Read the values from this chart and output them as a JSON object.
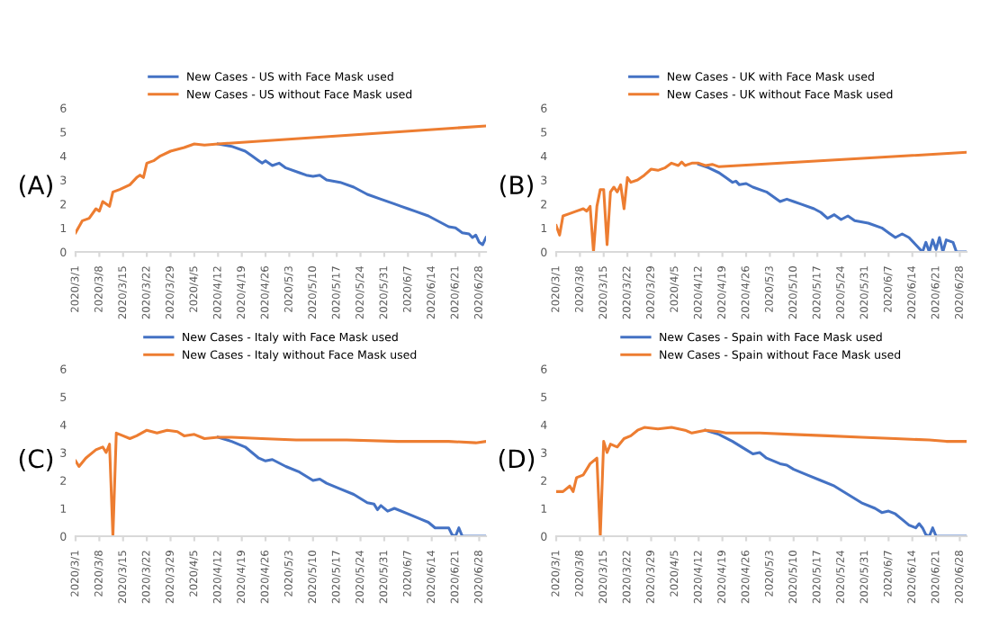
{
  "chart_data": [
    {
      "type": "line",
      "title": "(A)",
      "legend": "top",
      "grid": false,
      "xlim": [
        "2020-03-01",
        "2020-06-30"
      ],
      "ylim": [
        0,
        6
      ],
      "yticks": [
        0,
        1,
        2,
        3,
        4,
        5,
        6
      ],
      "xticks": [
        {
          "value": "2020-03-01",
          "label": "2020/3/1"
        },
        {
          "value": "2020-03-08",
          "label": "2020/3/8"
        },
        {
          "value": "2020-03-15",
          "label": "2020/3/15"
        },
        {
          "value": "2020-03-22",
          "label": "2020/3/22"
        },
        {
          "value": "2020-03-29",
          "label": "2020/3/29"
        },
        {
          "value": "2020-04-05",
          "label": "2020/4/5"
        },
        {
          "value": "2020-04-12",
          "label": "2020/4/12"
        },
        {
          "value": "2020-04-19",
          "label": "2020/4/19"
        },
        {
          "value": "2020-04-26",
          "label": "2020/4/26"
        },
        {
          "value": "2020-05-03",
          "label": "2020/5/3"
        },
        {
          "value": "2020-05-10",
          "label": "2020/5/10"
        },
        {
          "value": "2020-05-17",
          "label": "2020/5/17"
        },
        {
          "value": "2020-05-24",
          "label": "2020/5/24"
        },
        {
          "value": "2020-05-31",
          "label": "2020/5/31"
        },
        {
          "value": "2020-06-07",
          "label": "2020/6/7"
        },
        {
          "value": "2020-06-14",
          "label": "2020/6/14"
        },
        {
          "value": "2020-06-21",
          "label": "2020/6/21"
        },
        {
          "value": "2020-06-28",
          "label": "2020/6/28"
        }
      ],
      "series": [
        {
          "name": "New Cases - US with Face Mask used",
          "color": "#4472c4",
          "x": [
            "2020-04-12",
            "2020-04-16",
            "2020-04-20",
            "2020-04-22",
            "2020-04-24",
            "2020-04-25",
            "2020-04-26",
            "2020-04-28",
            "2020-04-30",
            "2020-05-02",
            "2020-05-06",
            "2020-05-08",
            "2020-05-10",
            "2020-05-12",
            "2020-05-14",
            "2020-05-18",
            "2020-05-22",
            "2020-05-26",
            "2020-05-30",
            "2020-06-03",
            "2020-06-05",
            "2020-06-07",
            "2020-06-09",
            "2020-06-13",
            "2020-06-17",
            "2020-06-19",
            "2020-06-21",
            "2020-06-23",
            "2020-06-25",
            "2020-06-26",
            "2020-06-27",
            "2020-06-28",
            "2020-06-29",
            "2020-06-30"
          ],
          "values": [
            4.5,
            4.4,
            4.2,
            4.0,
            3.8,
            3.7,
            3.8,
            3.6,
            3.7,
            3.5,
            3.3,
            3.2,
            3.15,
            3.2,
            3.0,
            2.9,
            2.7,
            2.4,
            2.2,
            2.0,
            1.9,
            1.8,
            1.7,
            1.5,
            1.2,
            1.05,
            1.0,
            0.8,
            0.75,
            0.6,
            0.7,
            0.4,
            0.3,
            0.6
          ]
        },
        {
          "name": "New Cases - US without Face Mask used",
          "color": "#ed7d31",
          "x": [
            "2020-03-01",
            "2020-03-03",
            "2020-03-05",
            "2020-03-07",
            "2020-03-08",
            "2020-03-09",
            "2020-03-11",
            "2020-03-12",
            "2020-03-14",
            "2020-03-17",
            "2020-03-19",
            "2020-03-20",
            "2020-03-21",
            "2020-03-22",
            "2020-03-24",
            "2020-03-26",
            "2020-03-29",
            "2020-04-02",
            "2020-04-05",
            "2020-04-08",
            "2020-04-12",
            "2020-06-30"
          ],
          "values": [
            0.8,
            1.3,
            1.4,
            1.8,
            1.7,
            2.1,
            1.9,
            2.5,
            2.6,
            2.8,
            3.1,
            3.2,
            3.1,
            3.7,
            3.8,
            4.0,
            4.2,
            4.35,
            4.5,
            4.45,
            4.5,
            5.25
          ]
        }
      ]
    },
    {
      "type": "line",
      "title": "(B)",
      "legend": "top",
      "grid": false,
      "xlim": [
        "2020-03-01",
        "2020-06-30"
      ],
      "ylim": [
        0,
        6
      ],
      "yticks": [
        0,
        1,
        2,
        3,
        4,
        5,
        6
      ],
      "xticks": [
        {
          "value": "2020-03-01",
          "label": "2020/3/1"
        },
        {
          "value": "2020-03-08",
          "label": "2020/3/8"
        },
        {
          "value": "2020-03-15",
          "label": "2020/3/15"
        },
        {
          "value": "2020-03-22",
          "label": "2020/3/22"
        },
        {
          "value": "2020-03-29",
          "label": "2020/3/29"
        },
        {
          "value": "2020-04-05",
          "label": "2020/4/5"
        },
        {
          "value": "2020-04-12",
          "label": "2020/4/12"
        },
        {
          "value": "2020-04-19",
          "label": "2020/4/19"
        },
        {
          "value": "2020-04-26",
          "label": "2020/4/26"
        },
        {
          "value": "2020-05-03",
          "label": "2020/5/3"
        },
        {
          "value": "2020-05-10",
          "label": "2020/5/10"
        },
        {
          "value": "2020-05-17",
          "label": "2020/5/17"
        },
        {
          "value": "2020-05-24",
          "label": "2020/5/24"
        },
        {
          "value": "2020-05-31",
          "label": "2020/5/31"
        },
        {
          "value": "2020-06-07",
          "label": "2020/6/7"
        },
        {
          "value": "2020-06-14",
          "label": "2020/6/14"
        },
        {
          "value": "2020-06-21",
          "label": "2020/6/21"
        },
        {
          "value": "2020-06-28",
          "label": "2020/6/28"
        }
      ],
      "series": [
        {
          "name": "New Cases - UK with Face Mask used",
          "color": "#4472c4",
          "x": [
            "2020-04-12",
            "2020-04-15",
            "2020-04-18",
            "2020-04-20",
            "2020-04-22",
            "2020-04-23",
            "2020-04-24",
            "2020-04-26",
            "2020-04-28",
            "2020-05-02",
            "2020-05-06",
            "2020-05-08",
            "2020-05-10",
            "2020-05-12",
            "2020-05-16",
            "2020-05-18",
            "2020-05-20",
            "2020-05-22",
            "2020-05-24",
            "2020-05-26",
            "2020-05-28",
            "2020-06-01",
            "2020-06-05",
            "2020-06-07",
            "2020-06-09",
            "2020-06-11",
            "2020-06-13",
            "2020-06-15",
            "2020-06-17",
            "2020-06-18",
            "2020-06-19",
            "2020-06-20",
            "2020-06-21",
            "2020-06-22",
            "2020-06-23",
            "2020-06-24",
            "2020-06-26",
            "2020-06-27",
            "2020-06-30"
          ],
          "values": [
            3.65,
            3.5,
            3.3,
            3.1,
            2.9,
            2.95,
            2.8,
            2.85,
            2.7,
            2.5,
            2.1,
            2.2,
            2.1,
            2.0,
            1.8,
            1.65,
            1.4,
            1.55,
            1.35,
            1.5,
            1.3,
            1.2,
            1.0,
            0.8,
            0.6,
            0.75,
            0.6,
            0.3,
            0.0,
            0.4,
            0.0,
            0.5,
            0.1,
            0.6,
            0.0,
            0.5,
            0.4,
            0.0,
            0.0
          ]
        },
        {
          "name": "New Cases - UK without Face Mask used",
          "color": "#ed7d31",
          "x": [
            "2020-03-01",
            "2020-03-02",
            "2020-03-03",
            "2020-03-05",
            "2020-03-07",
            "2020-03-09",
            "2020-03-10",
            "2020-03-11",
            "2020-03-12",
            "2020-03-13",
            "2020-03-14",
            "2020-03-15",
            "2020-03-16",
            "2020-03-17",
            "2020-03-18",
            "2020-03-19",
            "2020-03-20",
            "2020-03-21",
            "2020-03-22",
            "2020-03-23",
            "2020-03-25",
            "2020-03-27",
            "2020-03-29",
            "2020-03-31",
            "2020-04-02",
            "2020-04-04",
            "2020-04-06",
            "2020-04-07",
            "2020-04-08",
            "2020-04-10",
            "2020-04-12",
            "2020-04-14",
            "2020-04-16",
            "2020-04-18",
            "2020-06-30"
          ],
          "values": [
            1.1,
            0.7,
            1.5,
            1.6,
            1.7,
            1.8,
            1.7,
            1.9,
            0.0,
            1.9,
            2.6,
            2.6,
            0.3,
            2.5,
            2.7,
            2.5,
            2.8,
            1.8,
            3.1,
            2.9,
            3.0,
            3.2,
            3.45,
            3.4,
            3.5,
            3.7,
            3.6,
            3.75,
            3.6,
            3.7,
            3.7,
            3.6,
            3.65,
            3.55,
            4.15
          ]
        }
      ]
    },
    {
      "type": "line",
      "title": "(C)",
      "legend": "top",
      "grid": false,
      "xlim": [
        "2020-03-01",
        "2020-06-30"
      ],
      "ylim": [
        0,
        6
      ],
      "yticks": [
        0,
        1,
        2,
        3,
        4,
        5,
        6
      ],
      "xticks": [
        {
          "value": "2020-03-01",
          "label": "2020/3/1"
        },
        {
          "value": "2020-03-08",
          "label": "2020/3/8"
        },
        {
          "value": "2020-03-15",
          "label": "2020/3/15"
        },
        {
          "value": "2020-03-22",
          "label": "2020/3/22"
        },
        {
          "value": "2020-03-29",
          "label": "2020/3/29"
        },
        {
          "value": "2020-04-05",
          "label": "2020/4/5"
        },
        {
          "value": "2020-04-12",
          "label": "2020/4/12"
        },
        {
          "value": "2020-04-19",
          "label": "2020/4/19"
        },
        {
          "value": "2020-04-26",
          "label": "2020/4/26"
        },
        {
          "value": "2020-05-03",
          "label": "2020/5/3"
        },
        {
          "value": "2020-05-10",
          "label": "2020/5/10"
        },
        {
          "value": "2020-05-17",
          "label": "2020/5/17"
        },
        {
          "value": "2020-05-24",
          "label": "2020/5/24"
        },
        {
          "value": "2020-05-31",
          "label": "2020/5/31"
        },
        {
          "value": "2020-06-07",
          "label": "2020/6/7"
        },
        {
          "value": "2020-06-14",
          "label": "2020/6/14"
        },
        {
          "value": "2020-06-21",
          "label": "2020/6/21"
        },
        {
          "value": "2020-06-28",
          "label": "2020/6/28"
        }
      ],
      "series": [
        {
          "name": "New Cases - Italy with Face Mask used",
          "color": "#4472c4",
          "x": [
            "2020-04-12",
            "2020-04-16",
            "2020-04-20",
            "2020-04-24",
            "2020-04-26",
            "2020-04-28",
            "2020-05-02",
            "2020-05-06",
            "2020-05-10",
            "2020-05-12",
            "2020-05-14",
            "2020-05-18",
            "2020-05-22",
            "2020-05-26",
            "2020-05-28",
            "2020-05-29",
            "2020-05-30",
            "2020-06-01",
            "2020-06-03",
            "2020-06-07",
            "2020-06-11",
            "2020-06-13",
            "2020-06-15",
            "2020-06-19",
            "2020-06-20",
            "2020-06-21",
            "2020-06-22",
            "2020-06-23",
            "2020-06-30"
          ],
          "values": [
            3.55,
            3.4,
            3.2,
            2.8,
            2.7,
            2.75,
            2.5,
            2.3,
            2.0,
            2.05,
            1.9,
            1.7,
            1.5,
            1.2,
            1.15,
            0.95,
            1.1,
            0.9,
            1.0,
            0.8,
            0.6,
            0.5,
            0.3,
            0.3,
            0.05,
            0.0,
            0.3,
            0.0,
            0.0
          ]
        },
        {
          "name": "New Cases - Italy without Face Mask used",
          "color": "#ed7d31",
          "x": [
            "2020-03-01",
            "2020-03-02",
            "2020-03-04",
            "2020-03-07",
            "2020-03-09",
            "2020-03-10",
            "2020-03-11",
            "2020-03-12",
            "2020-03-13",
            "2020-03-15",
            "2020-03-17",
            "2020-03-19",
            "2020-03-22",
            "2020-03-25",
            "2020-03-28",
            "2020-03-31",
            "2020-04-02",
            "2020-04-05",
            "2020-04-08",
            "2020-04-12",
            "2020-04-16",
            "2020-04-25",
            "2020-05-05",
            "2020-05-20",
            "2020-06-04",
            "2020-06-19",
            "2020-06-27",
            "2020-06-30"
          ],
          "values": [
            2.7,
            2.5,
            2.8,
            3.1,
            3.2,
            3.0,
            3.3,
            0.0,
            3.7,
            3.6,
            3.5,
            3.6,
            3.8,
            3.7,
            3.8,
            3.75,
            3.6,
            3.65,
            3.5,
            3.55,
            3.55,
            3.5,
            3.45,
            3.45,
            3.4,
            3.4,
            3.35,
            3.4
          ]
        }
      ]
    },
    {
      "type": "line",
      "title": "(D)",
      "legend": "top",
      "grid": false,
      "xlim": [
        "2020-03-01",
        "2020-06-30"
      ],
      "ylim": [
        0,
        6
      ],
      "yticks": [
        0,
        1,
        2,
        3,
        4,
        5,
        6
      ],
      "xticks": [
        {
          "value": "2020-03-01",
          "label": "2020/3/1"
        },
        {
          "value": "2020-03-08",
          "label": "2020/3/8"
        },
        {
          "value": "2020-03-15",
          "label": "2020/3/15"
        },
        {
          "value": "2020-03-22",
          "label": "2020/3/22"
        },
        {
          "value": "2020-03-29",
          "label": "2020/3/29"
        },
        {
          "value": "2020-04-05",
          "label": "2020/4/5"
        },
        {
          "value": "2020-04-12",
          "label": "2020/4/12"
        },
        {
          "value": "2020-04-19",
          "label": "2020/4/19"
        },
        {
          "value": "2020-04-26",
          "label": "2020/4/26"
        },
        {
          "value": "2020-05-03",
          "label": "2020/5/3"
        },
        {
          "value": "2020-05-10",
          "label": "2020/5/10"
        },
        {
          "value": "2020-05-17",
          "label": "2020/5/17"
        },
        {
          "value": "2020-05-24",
          "label": "2020/5/24"
        },
        {
          "value": "2020-05-31",
          "label": "2020/5/31"
        },
        {
          "value": "2020-06-07",
          "label": "2020/6/7"
        },
        {
          "value": "2020-06-14",
          "label": "2020/6/14"
        },
        {
          "value": "2020-06-21",
          "label": "2020/6/21"
        },
        {
          "value": "2020-06-28",
          "label": "2020/6/28"
        }
      ],
      "series": [
        {
          "name": "New Cases - Spain with Face Mask used",
          "color": "#4472c4",
          "x": [
            "2020-04-14",
            "2020-04-18",
            "2020-04-22",
            "2020-04-26",
            "2020-04-28",
            "2020-04-30",
            "2020-05-02",
            "2020-05-06",
            "2020-05-08",
            "2020-05-10",
            "2020-05-14",
            "2020-05-18",
            "2020-05-22",
            "2020-05-26",
            "2020-05-30",
            "2020-06-03",
            "2020-06-05",
            "2020-06-07",
            "2020-06-09",
            "2020-06-11",
            "2020-06-13",
            "2020-06-15",
            "2020-06-16",
            "2020-06-17",
            "2020-06-18",
            "2020-06-19",
            "2020-06-20",
            "2020-06-21",
            "2020-06-30"
          ],
          "values": [
            3.8,
            3.65,
            3.4,
            3.1,
            2.95,
            3.0,
            2.8,
            2.6,
            2.55,
            2.4,
            2.2,
            2.0,
            1.8,
            1.5,
            1.2,
            1.0,
            0.85,
            0.9,
            0.8,
            0.6,
            0.4,
            0.3,
            0.45,
            0.3,
            0.05,
            0.0,
            0.3,
            0.0,
            0.0
          ]
        },
        {
          "name": "New Cases - Spain without Face Mask used",
          "color": "#ed7d31",
          "x": [
            "2020-03-01",
            "2020-03-03",
            "2020-03-05",
            "2020-03-06",
            "2020-03-07",
            "2020-03-09",
            "2020-03-11",
            "2020-03-13",
            "2020-03-14",
            "2020-03-15",
            "2020-03-16",
            "2020-03-17",
            "2020-03-19",
            "2020-03-21",
            "2020-03-23",
            "2020-03-25",
            "2020-03-27",
            "2020-03-31",
            "2020-04-04",
            "2020-04-08",
            "2020-04-10",
            "2020-04-14",
            "2020-04-18",
            "2020-04-20",
            "2020-04-30",
            "2020-05-10",
            "2020-05-20",
            "2020-05-30",
            "2020-06-09",
            "2020-06-19",
            "2020-06-24",
            "2020-06-30"
          ],
          "values": [
            1.6,
            1.6,
            1.8,
            1.6,
            2.1,
            2.2,
            2.6,
            2.8,
            0.0,
            3.4,
            3.0,
            3.3,
            3.2,
            3.5,
            3.6,
            3.8,
            3.9,
            3.85,
            3.9,
            3.8,
            3.7,
            3.8,
            3.75,
            3.7,
            3.7,
            3.65,
            3.6,
            3.55,
            3.5,
            3.45,
            3.4,
            3.4
          ]
        }
      ]
    }
  ]
}
